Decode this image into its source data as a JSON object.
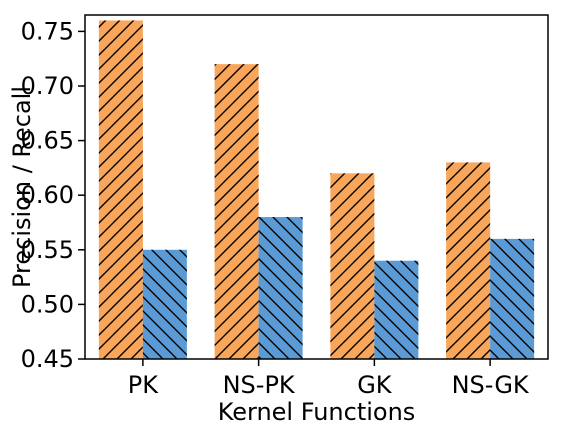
{
  "chart_data": {
    "type": "bar",
    "title": "",
    "xlabel": "Kernel Functions",
    "ylabel": "Precision / Recall",
    "categories": [
      "PK",
      "NS-PK",
      "GK",
      "NS-GK"
    ],
    "series": [
      {
        "values": [
          0.76,
          0.72,
          0.62,
          0.63
        ],
        "color": "#f9a65a",
        "hatch": "forward-diagonal"
      },
      {
        "values": [
          0.55,
          0.58,
          0.54,
          0.56
        ],
        "color": "#5b9bd5",
        "hatch": "back-diagonal"
      }
    ],
    "ylim": [
      0.45,
      0.765
    ],
    "yticks": [
      "0.45",
      "0.50",
      "0.55",
      "0.60",
      "0.65",
      "0.70",
      "0.75"
    ],
    "grid": false,
    "legend": false
  }
}
